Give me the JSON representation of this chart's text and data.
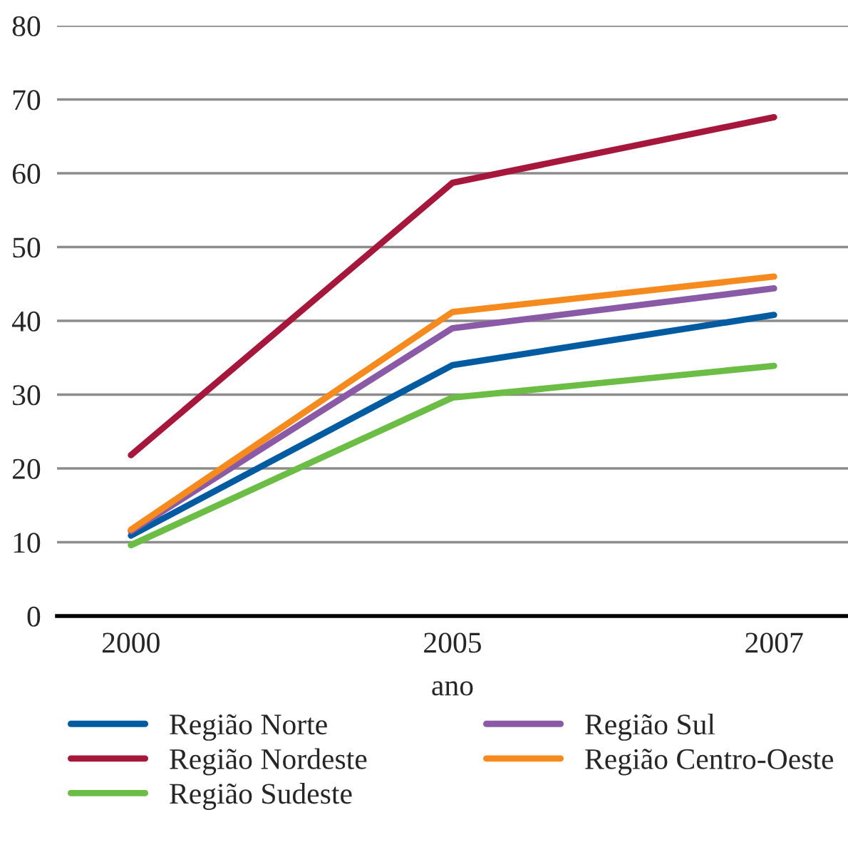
{
  "chart_data": {
    "type": "line",
    "xlabel": "ano",
    "categories": [
      "2000",
      "2005",
      "2007"
    ],
    "series": [
      {
        "name": "Região Norte",
        "color": "#005ba1",
        "values": [
          10.9,
          34.0,
          40.8
        ]
      },
      {
        "name": "Região Nordeste",
        "color": "#a6173c",
        "values": [
          21.8,
          58.7,
          67.6
        ]
      },
      {
        "name": "Região Sudeste",
        "color": "#6cbd45",
        "values": [
          9.6,
          29.6,
          33.9
        ]
      },
      {
        "name": "Região Sul",
        "color": "#8a5aa6",
        "values": [
          11.5,
          39.0,
          44.4
        ]
      },
      {
        "name": "Região Centro-Oeste",
        "color": "#f58b1f",
        "values": [
          11.7,
          41.2,
          46.0
        ]
      }
    ],
    "ylim": [
      0,
      80
    ],
    "yticks": [
      0,
      10,
      20,
      30,
      40,
      50,
      60,
      70,
      80
    ],
    "grid": "y",
    "legend": "bottom",
    "marker": "none",
    "line_style": "solid"
  }
}
